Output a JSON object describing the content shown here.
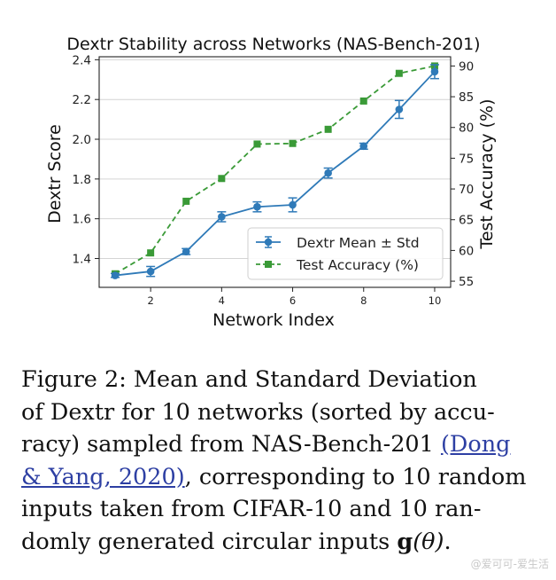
{
  "chart_data": {
    "type": "line",
    "title": "Dextr Stability across Networks (NAS-Bench-201)",
    "xlabel": "Network Index",
    "ylabel_left": "Dextr Score",
    "ylabel_right": "Test Accuracy (%)",
    "x": [
      1,
      2,
      3,
      4,
      5,
      6,
      7,
      8,
      9,
      10
    ],
    "x_ticks": [
      2,
      4,
      6,
      8,
      10
    ],
    "xlim": [
      0.55,
      10.45
    ],
    "y_left_ticks": [
      1.4,
      1.6,
      1.8,
      2.0,
      2.2,
      2.4
    ],
    "y_left_lim": [
      1.255,
      2.415
    ],
    "y_right_ticks": [
      55,
      60,
      65,
      70,
      75,
      80,
      85,
      90
    ],
    "y_right_lim": [
      54.0,
      91.5
    ],
    "grid": true,
    "legend_position": "lower-right",
    "series": [
      {
        "name": "Dextr Mean ± Std",
        "axis": "left",
        "color": "#2f7ab8",
        "marker": "circle",
        "line": "solid",
        "values": [
          1.315,
          1.335,
          1.435,
          1.61,
          1.66,
          1.67,
          1.83,
          1.965,
          2.15,
          2.34
        ],
        "error": [
          0.01,
          0.025,
          0.015,
          0.025,
          0.025,
          0.035,
          0.025,
          0.015,
          0.045,
          0.035
        ]
      },
      {
        "name": "Test Accuracy (%)",
        "axis": "right",
        "color": "#3a9a37",
        "marker": "square",
        "line": "dashed",
        "values": [
          56.2,
          59.6,
          68.0,
          71.7,
          77.3,
          77.4,
          79.7,
          84.3,
          88.8,
          90.0
        ]
      }
    ]
  },
  "caption": {
    "line1": "Figure 2:  Mean and Standard Deviation",
    "line2": "of Dextr for 10 networks (sorted by accu-",
    "line3_pre": "racy) sampled from NAS-Bench-201 ",
    "citation_part1": "(Dong",
    "citation_part2": "& Yang, 2020)",
    "line4_post": ", corresponding to 10 random",
    "line5": "inputs taken from CIFAR-10 and 10 ran-",
    "line6_pre": "domly generated circular inputs ",
    "math_g": "g",
    "math_theta": "(θ)",
    "line6_post": "."
  },
  "watermark": "@爱可可-爱生活"
}
